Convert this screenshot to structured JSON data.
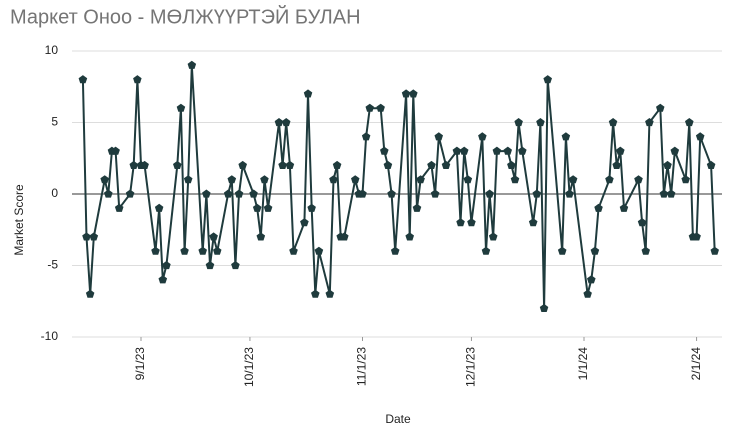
{
  "chart_data": {
    "type": "line",
    "title": "Маркет Оноо - МӨЛЖҮҮРТЭЙ БУЛАН",
    "x_label": "Date",
    "y_label": "Market Score",
    "color": "#1f3b3d",
    "grid": true,
    "ylim": [
      -10,
      10
    ],
    "yticks": [
      -10,
      -5,
      0,
      5,
      10
    ],
    "xlim": [
      "8/13/23",
      "2/8/24"
    ],
    "xticks": [
      "9/1/23",
      "10/1/23",
      "11/1/23",
      "12/1/23",
      "1/1/24",
      "2/1/24"
    ],
    "x": [
      "8/16/23",
      "8/17/23",
      "8/18/23",
      "8/19/23",
      "8/22/23",
      "8/23/23",
      "8/24/23",
      "8/25/23",
      "8/26/23",
      "8/29/23",
      "8/30/23",
      "8/31/23",
      "9/1/23",
      "9/2/23",
      "9/5/23",
      "9/6/23",
      "9/7/23",
      "9/8/23",
      "9/11/23",
      "9/12/23",
      "9/13/23",
      "9/14/23",
      "9/15/23",
      "9/18/23",
      "9/19/23",
      "9/20/23",
      "9/21/23",
      "9/22/23",
      "9/25/23",
      "9/26/23",
      "9/27/23",
      "9/28/23",
      "9/29/23",
      "10/2/23",
      "10/3/23",
      "10/4/23",
      "10/5/23",
      "10/6/23",
      "10/9/23",
      "10/10/23",
      "10/11/23",
      "10/12/23",
      "10/13/23",
      "10/16/23",
      "10/17/23",
      "10/18/23",
      "10/19/23",
      "10/20/23",
      "10/23/23",
      "10/24/23",
      "10/25/23",
      "10/26/23",
      "10/27/23",
      "10/30/23",
      "10/31/23",
      "11/1/23",
      "11/2/23",
      "11/3/23",
      "11/6/23",
      "11/7/23",
      "11/8/23",
      "11/9/23",
      "11/10/23",
      "11/13/23",
      "11/14/23",
      "11/15/23",
      "11/16/23",
      "11/17/23",
      "11/20/23",
      "11/21/23",
      "11/22/23",
      "11/24/23",
      "11/27/23",
      "11/28/23",
      "11/29/23",
      "11/30/23",
      "12/1/23",
      "12/4/23",
      "12/5/23",
      "12/6/23",
      "12/7/23",
      "12/8/23",
      "12/11/23",
      "12/12/23",
      "12/13/23",
      "12/14/23",
      "12/15/23",
      "12/18/23",
      "12/19/23",
      "12/20/23",
      "12/21/23",
      "12/22/23",
      "12/26/23",
      "12/27/23",
      "12/28/23",
      "12/29/23",
      "1/2/24",
      "1/3/24",
      "1/4/24",
      "1/5/24",
      "1/8/24",
      "1/9/24",
      "1/10/24",
      "1/11/24",
      "1/12/24",
      "1/16/24",
      "1/17/24",
      "1/18/24",
      "1/19/24",
      "1/22/24",
      "1/23/24",
      "1/24/24",
      "1/25/24",
      "1/26/24",
      "1/29/24",
      "1/30/24",
      "1/31/24",
      "2/1/24",
      "2/2/24",
      "2/5/24",
      "2/6/24"
    ],
    "values": [
      8,
      -3,
      -7,
      -3,
      1,
      0,
      3,
      3,
      -1,
      0,
      2,
      8,
      2,
      2,
      -4,
      -1,
      -6,
      -5,
      2,
      6,
      -4,
      1,
      9,
      -4,
      0,
      -5,
      -3,
      -4,
      0,
      1,
      -5,
      0,
      2,
      0,
      -1,
      -3,
      1,
      -1,
      5,
      2,
      5,
      2,
      -4,
      -2,
      7,
      -1,
      -7,
      -4,
      -7,
      1,
      2,
      -3,
      -3,
      1,
      0,
      0,
      4,
      6,
      6,
      3,
      2,
      0,
      -4,
      7,
      -3,
      7,
      -1,
      1,
      2,
      0,
      4,
      2,
      3,
      -2,
      3,
      1,
      -2,
      4,
      -4,
      0,
      -3,
      3,
      3,
      2,
      1,
      5,
      3,
      -2,
      0,
      5,
      -8,
      8,
      -4,
      4,
      0,
      1,
      -7,
      -6,
      -4,
      -1,
      1,
      5,
      2,
      3,
      -1,
      1,
      -2,
      -4,
      5,
      6,
      0,
      2,
      0,
      3,
      1,
      5,
      -3,
      -3,
      4,
      2,
      -4
    ]
  }
}
